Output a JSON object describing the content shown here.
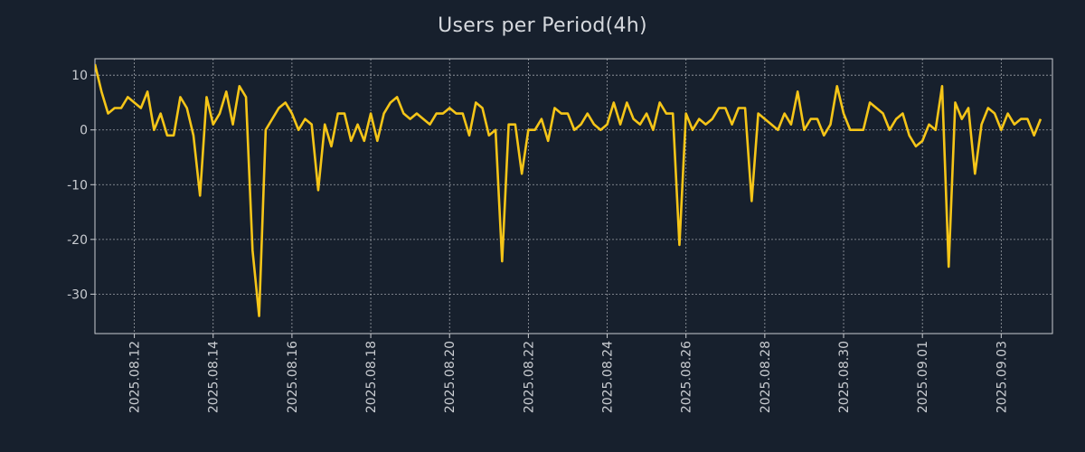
{
  "colors": {
    "background": "#17202d",
    "line": "#f5c518",
    "text": "#c9ccd1"
  },
  "chart_data": {
    "type": "line",
    "title": "Users per Period(4h)",
    "xlabel": "",
    "ylabel": "",
    "grid": true,
    "x_range_days": [
      0,
      24.3
    ],
    "ylim": [
      -37.2,
      13.0
    ],
    "y_ticks": [
      10,
      0,
      -10,
      -20,
      -30
    ],
    "y_tick_labels": [
      "10",
      "0",
      "-10",
      "-20",
      "-30"
    ],
    "x_ticks_day": [
      1,
      3,
      5,
      7,
      9,
      11,
      13,
      15,
      17,
      19,
      21,
      23
    ],
    "x_tick_labels": [
      "2025.08.12",
      "2025.08.14",
      "2025.08.16",
      "2025.08.18",
      "2025.08.20",
      "2025.08.22",
      "2025.08.24",
      "2025.08.26",
      "2025.08.28",
      "2025.08.30",
      "2025.09.01",
      "2025.09.03"
    ],
    "period_hours": 4,
    "series": [
      {
        "name": "Users",
        "values": [
          12,
          7,
          3,
          4,
          4,
          6,
          5,
          4,
          7,
          0,
          3,
          -1,
          -1,
          6,
          4,
          -1,
          -12,
          6,
          1,
          3,
          7,
          1,
          8,
          6,
          -22,
          -34,
          0,
          2,
          4,
          5,
          3,
          0,
          2,
          1,
          -11,
          1,
          -3,
          3,
          3,
          -2,
          1,
          -2,
          3,
          -2,
          3,
          5,
          6,
          3,
          2,
          3,
          2,
          1,
          3,
          3,
          4,
          3,
          3,
          -1,
          5,
          4,
          -1,
          0,
          -24,
          1,
          1,
          -8,
          0,
          0,
          2,
          -2,
          4,
          3,
          3,
          0,
          1,
          3,
          1,
          0,
          1,
          5,
          1,
          5,
          2,
          1,
          3,
          0,
          5,
          3,
          3,
          -21,
          3,
          0,
          2,
          1,
          2,
          4,
          4,
          1,
          4,
          4,
          -13,
          3,
          2,
          1,
          0,
          3,
          1,
          7,
          0,
          2,
          2,
          -1,
          1,
          8,
          3,
          0,
          0,
          0,
          5,
          4,
          3,
          0,
          2,
          3,
          -1,
          -3,
          -2,
          1,
          0,
          8,
          -25,
          5,
          2,
          4,
          -8,
          1,
          4,
          3,
          0,
          3,
          1,
          2,
          2,
          -1,
          2
        ]
      }
    ]
  }
}
